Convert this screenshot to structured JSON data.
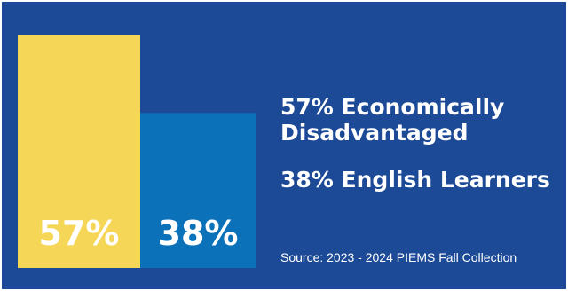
{
  "chart_data": {
    "type": "bar",
    "categories": [
      "Economically Disadvantaged",
      "English Learners"
    ],
    "values": [
      57,
      38
    ],
    "data_labels": [
      "57%",
      "38%"
    ],
    "ylim": [
      0,
      100
    ],
    "grid": false,
    "legend_placement": "right",
    "legend": [
      "57% Economically Disadvantaged",
      "38% English Learners"
    ],
    "colors": [
      "#f5d657",
      "#0b71b9"
    ],
    "source": "Source: 2023 - 2024 PIEMS Fall Collection"
  },
  "theme": {
    "background": "#1c4a96",
    "text": "#ffffff"
  }
}
